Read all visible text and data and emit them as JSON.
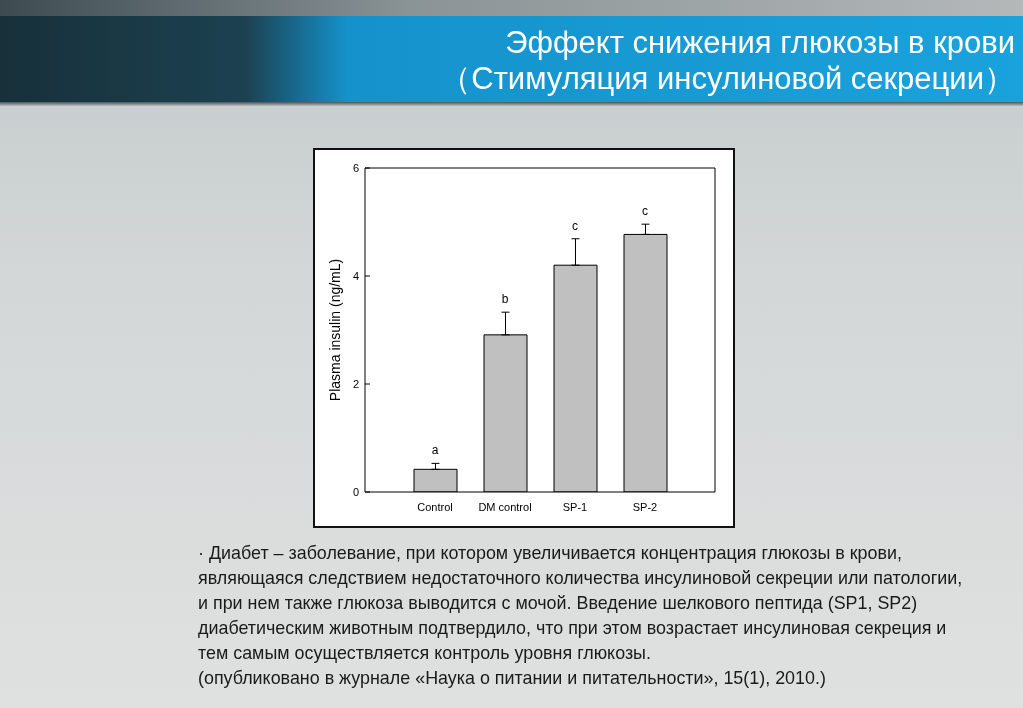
{
  "chart_data": {
    "type": "bar",
    "title": "Эффект снижения глюкозы в крови",
    "subtitle": "（Стимуляция инсулиновой секреции）",
    "ylabel": "Plasma insulin (ng/mL)",
    "categories": [
      "Control",
      "DM control",
      "SP-1",
      "SP-2"
    ],
    "values": [
      0.42,
      2.91,
      4.2,
      4.77
    ],
    "errors": [
      [
        0.42,
        0.53
      ],
      [
        2.91,
        3.33
      ],
      [
        4.2,
        4.69
      ],
      [
        4.77,
        4.96
      ]
    ],
    "color": "#c0c0c0",
    "ylim": [
      0,
      6
    ],
    "yticks": [
      0,
      2,
      4,
      6
    ],
    "annotations": [
      {
        "text": "a",
        "x": "Control",
        "y": 0.53
      },
      {
        "text": "b",
        "x": "DM control",
        "y": 3.33
      },
      {
        "text": "c",
        "x": "SP-1",
        "y": 4.69
      },
      {
        "text": "c",
        "x": "SP-2",
        "y": 4.96
      },
      "· Диабет – заболевание, при котором увеличивается концентрация глюкозы в крови, являющаяся следствием недостаточного количества инсулиновой секреции или патологии, и при нем также глюкоза выводится с мочой. Введение шелкового пептида (SP1, SP2) диабетическим животным подтвердило, что при этом возрастает инсулиновая секреция и тем самым осуществляется контроль уровня глюкозы.",
      "(опубликовано в журнале «Наука о питании и питательности», 15(1), 2010.)"
    ]
  }
}
